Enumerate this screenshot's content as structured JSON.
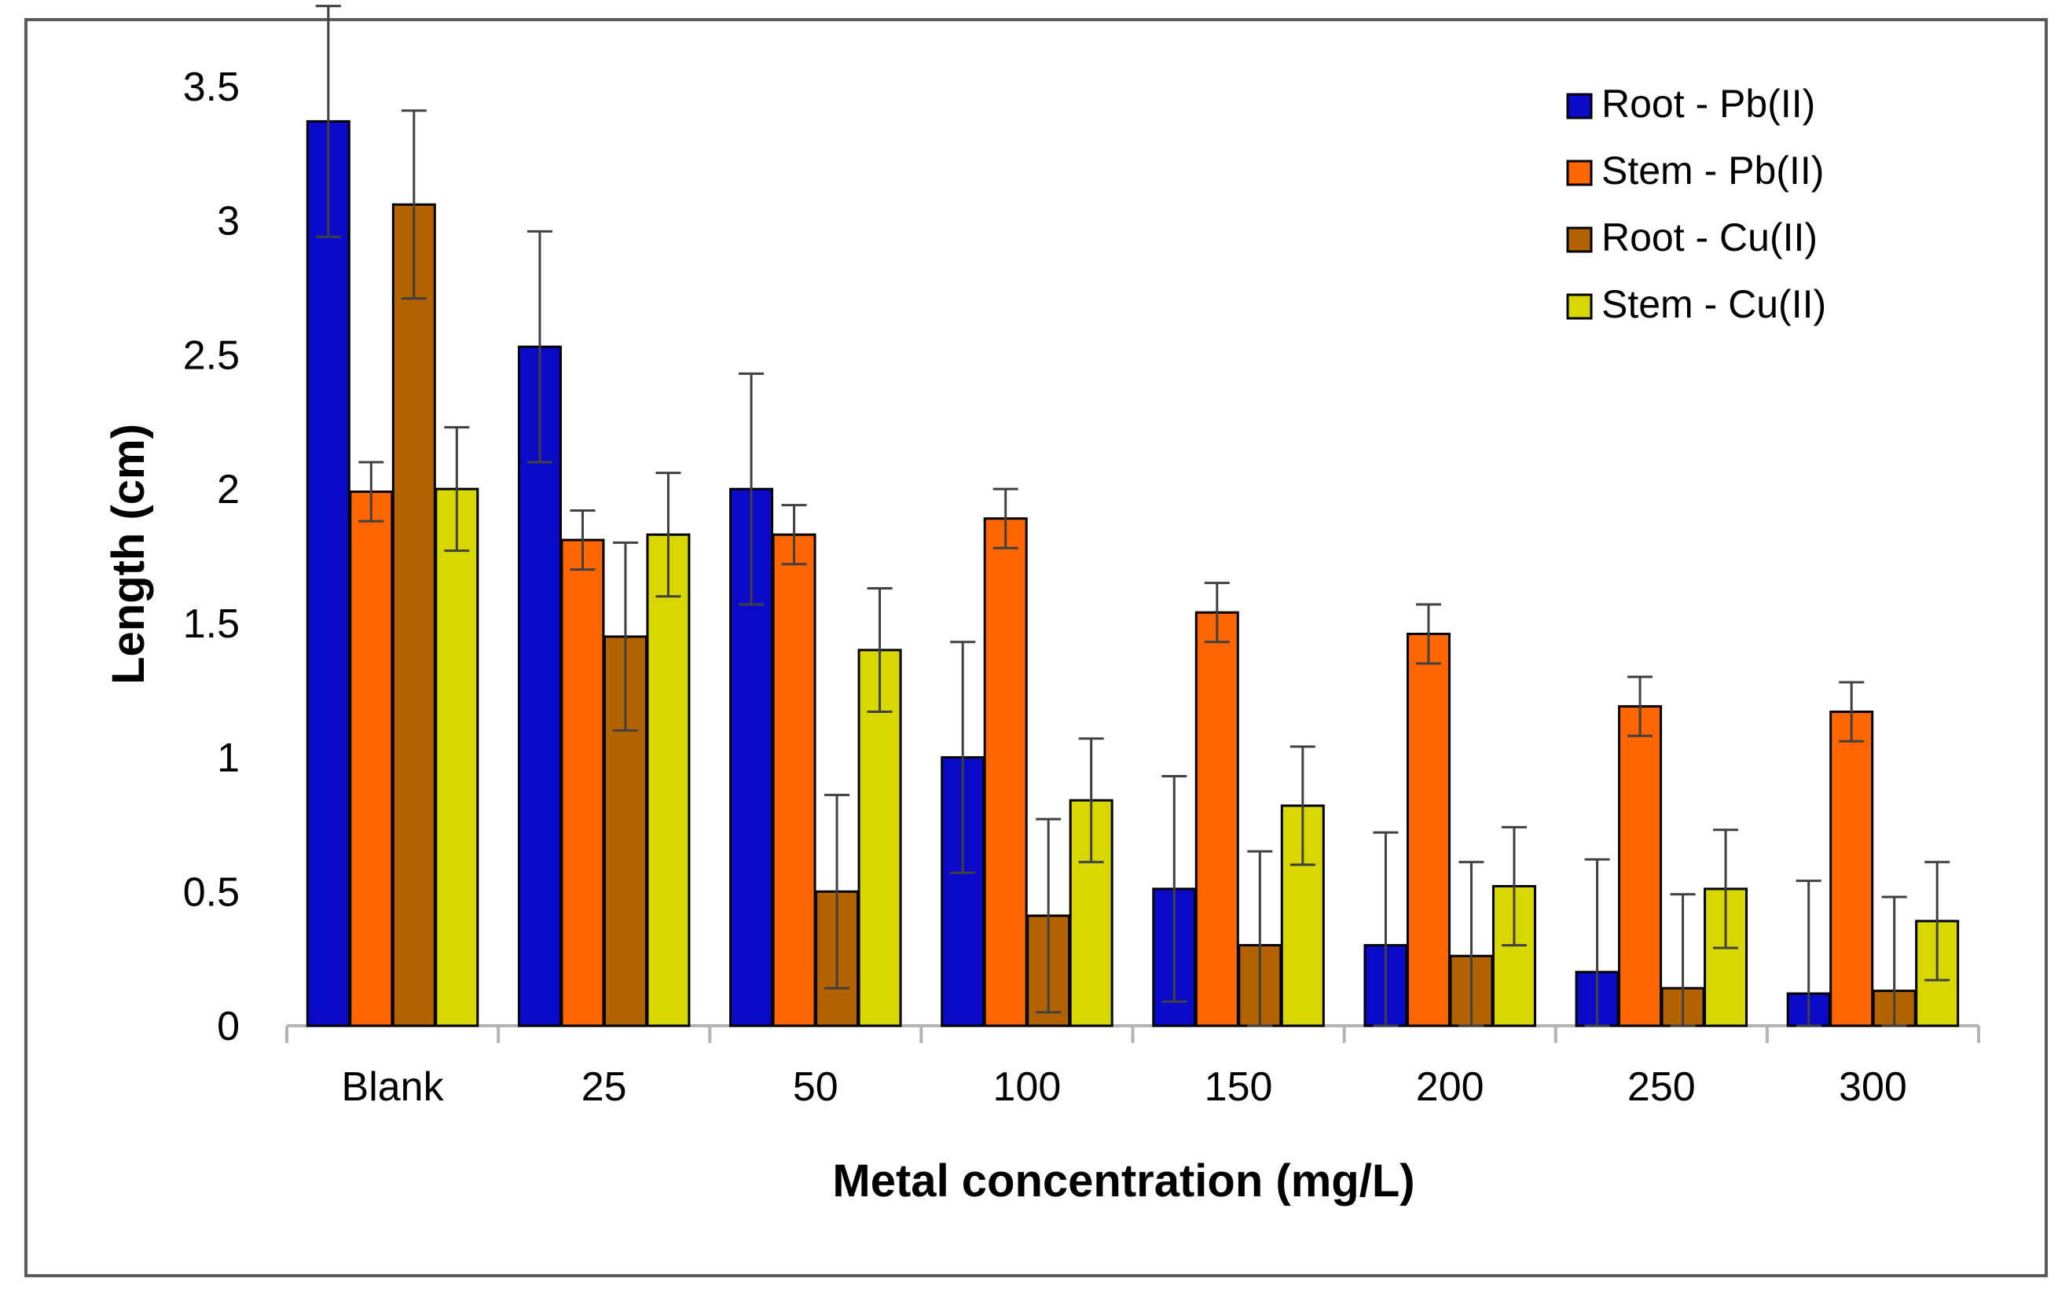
{
  "chart_data": {
    "type": "bar",
    "title": "",
    "xlabel": "Metal concentration (mg/L)",
    "ylabel": "Length (cm)",
    "ylim": [
      0,
      3.5
    ],
    "yticks": [
      {
        "value": 0,
        "label": "0"
      },
      {
        "value": 0.5,
        "label": "0.5"
      },
      {
        "value": 1,
        "label": "1"
      },
      {
        "value": 1.5,
        "label": "1.5"
      },
      {
        "value": 2,
        "label": "2"
      },
      {
        "value": 2.5,
        "label": "2.5"
      },
      {
        "value": 3,
        "label": "3"
      },
      {
        "value": 3.5,
        "label": "3.5"
      }
    ],
    "grid": false,
    "legend_position": "top-right",
    "categories": [
      "Blank",
      "25",
      "50",
      "100",
      "150",
      "200",
      "250",
      "300"
    ],
    "series": [
      {
        "name": "Root - Pb(II)",
        "color": "#0a0ac8",
        "values": [
          3.37,
          2.53,
          2.0,
          1.0,
          0.51,
          0.3,
          0.2,
          0.12
        ],
        "errors": [
          0.43,
          0.43,
          0.43,
          0.43,
          0.42,
          0.42,
          0.42,
          0.42
        ]
      },
      {
        "name": "Stem - Pb(II)",
        "color": "#ff6600",
        "values": [
          1.99,
          1.81,
          1.83,
          1.89,
          1.54,
          1.46,
          1.19,
          1.17
        ],
        "errors": [
          0.11,
          0.11,
          0.11,
          0.11,
          0.11,
          0.11,
          0.11,
          0.11
        ]
      },
      {
        "name": "Root - Cu(II)",
        "color": "#b36200",
        "values": [
          3.06,
          1.45,
          0.5,
          0.41,
          0.3,
          0.26,
          0.14,
          0.13
        ],
        "errors": [
          0.35,
          0.35,
          0.36,
          0.36,
          0.35,
          0.35,
          0.35,
          0.35
        ]
      },
      {
        "name": "Stem - Cu(II)",
        "color": "#d8d800",
        "values": [
          2.0,
          1.83,
          1.4,
          0.84,
          0.82,
          0.52,
          0.51,
          0.39
        ],
        "errors": [
          0.23,
          0.23,
          0.23,
          0.23,
          0.22,
          0.22,
          0.22,
          0.22
        ]
      }
    ]
  }
}
